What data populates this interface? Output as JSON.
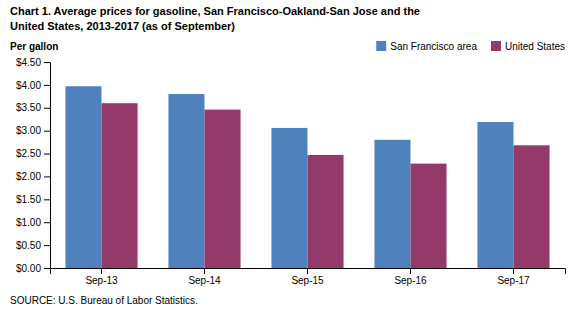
{
  "chart_data": {
    "type": "bar",
    "title": "Chart 1. Average prices for gasoline, San Francisco-Oakland-San Jose  and the",
    "subtitle": "United States, 2013-2017  (as of September)",
    "y_label": "Per gallon",
    "annotations": [
      "SOURCE: U.S. Bureau of Labor Statistics."
    ],
    "categories": [
      "Sep-13",
      "Sep-14",
      "Sep-15",
      "Sep-16",
      "Sep-17"
    ],
    "series": [
      {
        "name": "San Francisco area",
        "color": "#4F81BD",
        "values": [
          3.97,
          3.8,
          3.06,
          2.8,
          3.19
        ]
      },
      {
        "name": "United States",
        "color": "#943A6B",
        "values": [
          3.6,
          3.46,
          2.47,
          2.28,
          2.68
        ]
      }
    ],
    "ylim": [
      0.0,
      4.5
    ],
    "yticks": [
      {
        "value": 0.0,
        "label": "$0.00"
      },
      {
        "value": 0.5,
        "label": "$0.50"
      },
      {
        "value": 1.0,
        "label": "$1.00"
      },
      {
        "value": 1.5,
        "label": "$1.50"
      },
      {
        "value": 2.0,
        "label": "$2.00"
      },
      {
        "value": 2.5,
        "label": "$2.50"
      },
      {
        "value": 3.0,
        "label": "$3.00"
      },
      {
        "value": 3.5,
        "label": "$3.50"
      },
      {
        "value": 4.0,
        "label": "$4.00"
      },
      {
        "value": 4.5,
        "label": "$4.50"
      }
    ],
    "legend": "upper right",
    "grid": false
  }
}
